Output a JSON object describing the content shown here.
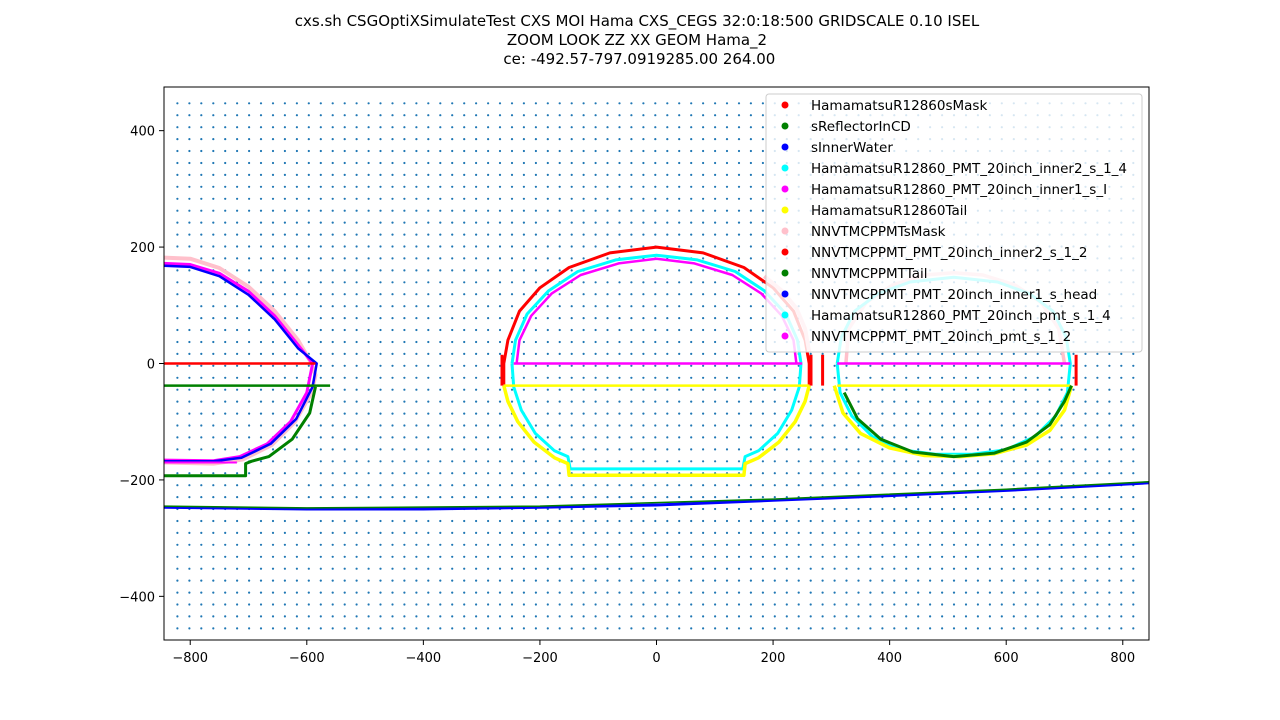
{
  "chart_data": {
    "type": "scatter",
    "title_lines": [
      "cxs.sh CSGOptiXSimulateTest CXS  MOI Hama CXS_CEGS 32:0:18:500 GRIDSCALE 0.10 ISEL",
      "ZOOM  LOOK  ZZ  XX  GEOM Hama_2",
      " ce: -492.57-797.0919285.00 264.00"
    ],
    "xlabel": "",
    "ylabel": "",
    "xlim": [
      -845,
      845
    ],
    "ylim": [
      -475,
      475
    ],
    "xticks": [
      -800,
      -600,
      -400,
      -200,
      0,
      200,
      400,
      600,
      800
    ],
    "yticks": [
      -400,
      -200,
      0,
      200,
      400
    ],
    "xtick_labels": [
      "−800",
      "−600",
      "−400",
      "−200",
      "0",
      "200",
      "400",
      "600",
      "800"
    ],
    "ytick_labels": [
      "−400",
      "−200",
      "0",
      "200",
      "400"
    ],
    "grid_points": {
      "color": "#1f77b4",
      "x_start": -822,
      "x_end": 822,
      "x_step": 20.5,
      "y_start": -455,
      "y_end": 455,
      "y_step": 20.5
    },
    "legend": {
      "placement": "upper right",
      "entries": [
        {
          "name": "HamamatsuR12860sMask",
          "color": "#ff0000"
        },
        {
          "name": "sReflectorInCD",
          "color": "#008000"
        },
        {
          "name": "sInnerWater",
          "color": "#0000ff"
        },
        {
          "name": "HamamatsuR12860_PMT_20inch_inner2_s_1_4",
          "color": "#00ffff"
        },
        {
          "name": "HamamatsuR12860_PMT_20inch_inner1_s_I",
          "color": "#ff00ff"
        },
        {
          "name": "HamamatsuR12860Tail",
          "color": "#ffff00"
        },
        {
          "name": "NNVTMCPPMTsMask",
          "color": "#ffc0cb"
        },
        {
          "name": "NNVTMCPPMT_PMT_20inch_inner2_s_1_2",
          "color": "#ff0000"
        },
        {
          "name": "NNVTMCPPMTTail",
          "color": "#008000"
        },
        {
          "name": "NNVTMCPPMT_PMT_20inch_inner1_s_head",
          "color": "#0000ff"
        },
        {
          "name": "HamamatsuR12860_PMT_20inch_pmt_s_1_4",
          "color": "#00ffff"
        },
        {
          "name": "NNVTMCPPMT_PMT_20inch_pmt_s_1_2",
          "color": "#ff00ff"
        }
      ]
    },
    "series": [
      {
        "color": "#ffc0cb",
        "width": 4,
        "points": [
          [
            -845,
            182
          ],
          [
            -800,
            180
          ],
          [
            -750,
            164
          ],
          [
            -700,
            132
          ],
          [
            -655,
            90
          ],
          [
            -615,
            40
          ],
          [
            -592,
            0
          ],
          [
            -585,
            -20
          ],
          [
            -592,
            -50
          ],
          [
            -620,
            -100
          ],
          [
            -660,
            -140
          ],
          [
            -710,
            -165
          ],
          [
            -760,
            -172
          ],
          [
            -845,
            -170
          ]
        ]
      },
      {
        "color": "#ff00ff",
        "width": 3,
        "points": [
          [
            -845,
            172
          ],
          [
            -800,
            170
          ],
          [
            -750,
            155
          ],
          [
            -700,
            124
          ],
          [
            -655,
            82
          ],
          [
            -615,
            32
          ],
          [
            -590,
            0
          ],
          [
            -600,
            -50
          ],
          [
            -628,
            -100
          ],
          [
            -668,
            -138
          ],
          [
            -715,
            -160
          ],
          [
            -760,
            -167
          ],
          [
            -845,
            -166
          ]
        ]
      },
      {
        "color": "#0000ff",
        "width": 2.5,
        "points": [
          [
            -845,
            168
          ],
          [
            -800,
            166
          ],
          [
            -750,
            150
          ],
          [
            -700,
            118
          ],
          [
            -655,
            76
          ],
          [
            -615,
            26
          ],
          [
            -583,
            0
          ],
          [
            -590,
            -40
          ],
          [
            -618,
            -95
          ],
          [
            -662,
            -138
          ],
          [
            -712,
            -162
          ],
          [
            -760,
            -168
          ],
          [
            -845,
            -168
          ]
        ]
      },
      {
        "color": "#008000",
        "width": 3,
        "points": [
          [
            -585,
            -40
          ],
          [
            -595,
            -85
          ],
          [
            -625,
            -130
          ],
          [
            -665,
            -160
          ],
          [
            -695,
            -168
          ],
          [
            -705,
            -172
          ],
          [
            -705,
            -193
          ],
          [
            -845,
            -193
          ]
        ]
      },
      {
        "color": "#008000",
        "width": 2.5,
        "points": [
          [
            -845,
            -38
          ],
          [
            -560,
            -38
          ]
        ]
      },
      {
        "color": "#ff0000",
        "width": 2.5,
        "points": [
          [
            -845,
            0
          ],
          [
            -585,
            0
          ]
        ]
      },
      {
        "color": "#ff00ff",
        "width": 2,
        "points": [
          [
            -845,
            -170
          ],
          [
            -720,
            -170
          ]
        ]
      },
      {
        "color": "#ff0000",
        "width": 3,
        "points": [
          [
            -262,
            -36
          ],
          [
            -262,
            0
          ],
          [
            -255,
            40
          ],
          [
            -235,
            90
          ],
          [
            -200,
            130
          ],
          [
            -150,
            165
          ],
          [
            -80,
            190
          ],
          [
            0,
            200
          ],
          [
            80,
            190
          ],
          [
            150,
            165
          ],
          [
            200,
            130
          ],
          [
            235,
            90
          ],
          [
            255,
            40
          ],
          [
            262,
            0
          ],
          [
            262,
            -36
          ]
        ]
      },
      {
        "color": "#ffc0cb",
        "width": 4,
        "points": [
          [
            185,
            150
          ],
          [
            215,
            125
          ],
          [
            240,
            95
          ],
          [
            255,
            60
          ],
          [
            262,
            20
          ]
        ]
      },
      {
        "color": "#00ffff",
        "width": 3,
        "points": [
          [
            -248,
            0
          ],
          [
            -245,
            -40
          ],
          [
            -232,
            -80
          ],
          [
            -208,
            -120
          ],
          [
            -175,
            -150
          ],
          [
            -152,
            -160
          ],
          [
            -148,
            -181
          ],
          [
            148,
            -181
          ],
          [
            152,
            -160
          ],
          [
            175,
            -150
          ],
          [
            208,
            -120
          ],
          [
            232,
            -80
          ],
          [
            245,
            -40
          ],
          [
            248,
            0
          ],
          [
            242,
            40
          ],
          [
            222,
            85
          ],
          [
            185,
            125
          ],
          [
            135,
            158
          ],
          [
            70,
            178
          ],
          [
            0,
            186
          ],
          [
            -70,
            178
          ],
          [
            -135,
            158
          ],
          [
            -185,
            125
          ],
          [
            -222,
            85
          ],
          [
            -242,
            40
          ],
          [
            -248,
            0
          ]
        ]
      },
      {
        "color": "#ff00ff",
        "width": 2.5,
        "points": [
          [
            -240,
            0
          ],
          [
            -235,
            40
          ],
          [
            -215,
            82
          ],
          [
            -180,
            120
          ],
          [
            -130,
            152
          ],
          [
            -65,
            172
          ],
          [
            0,
            180
          ],
          [
            65,
            172
          ],
          [
            130,
            152
          ],
          [
            180,
            120
          ],
          [
            215,
            82
          ],
          [
            235,
            40
          ],
          [
            240,
            0
          ]
        ]
      },
      {
        "color": "#ff00ff",
        "width": 2.5,
        "points": [
          [
            -245,
            0
          ],
          [
            250,
            0
          ]
        ]
      },
      {
        "color": "#ffff00",
        "width": 3.5,
        "points": [
          [
            -262,
            -38
          ],
          [
            -255,
            -65
          ],
          [
            -238,
            -100
          ],
          [
            -210,
            -135
          ],
          [
            -175,
            -162
          ],
          [
            -152,
            -172
          ],
          [
            -150,
            -192
          ],
          [
            150,
            -192
          ],
          [
            152,
            -172
          ],
          [
            175,
            -162
          ],
          [
            210,
            -135
          ],
          [
            238,
            -100
          ],
          [
            255,
            -65
          ],
          [
            262,
            -38
          ]
        ]
      },
      {
        "color": "#ffff00",
        "width": 2.5,
        "points": [
          [
            -262,
            -38
          ],
          [
            262,
            -38
          ]
        ]
      },
      {
        "color": "#ff0000",
        "width": 3,
        "points": [
          [
            -265,
            -38
          ],
          [
            -265,
            15
          ]
        ]
      },
      {
        "color": "#ff0000",
        "width": 3,
        "points": [
          [
            265,
            -38
          ],
          [
            265,
            15
          ]
        ]
      },
      {
        "color": "#ff0000",
        "width": 3,
        "points": [
          [
            285,
            -38
          ],
          [
            285,
            15
          ]
        ]
      },
      {
        "color": "#ffc0cb",
        "width": 3.5,
        "points": [
          [
            325,
            0
          ],
          [
            330,
            60
          ],
          [
            360,
            105
          ],
          [
            405,
            135
          ],
          [
            460,
            152
          ],
          [
            510,
            156
          ],
          [
            560,
            152
          ],
          [
            615,
            135
          ],
          [
            660,
            105
          ],
          [
            690,
            60
          ],
          [
            700,
            0
          ]
        ]
      },
      {
        "color": "#00ffff",
        "width": 3,
        "points": [
          [
            310,
            0
          ],
          [
            315,
            -50
          ],
          [
            335,
            -90
          ],
          [
            370,
            -125
          ],
          [
            420,
            -148
          ],
          [
            480,
            -156
          ],
          [
            540,
            -156
          ],
          [
            600,
            -148
          ],
          [
            650,
            -125
          ],
          [
            685,
            -90
          ],
          [
            705,
            -50
          ],
          [
            710,
            0
          ],
          [
            703,
            45
          ],
          [
            680,
            90
          ],
          [
            640,
            120
          ],
          [
            585,
            140
          ],
          [
            510,
            148
          ],
          [
            435,
            140
          ],
          [
            380,
            120
          ],
          [
            340,
            90
          ],
          [
            317,
            45
          ],
          [
            310,
            0
          ]
        ]
      },
      {
        "color": "#ffff00",
        "width": 3.5,
        "points": [
          [
            305,
            -38
          ],
          [
            320,
            -85
          ],
          [
            350,
            -120
          ],
          [
            400,
            -145
          ],
          [
            460,
            -158
          ],
          [
            520,
            -160
          ],
          [
            580,
            -155
          ],
          [
            635,
            -140
          ],
          [
            675,
            -115
          ],
          [
            700,
            -80
          ],
          [
            712,
            -38
          ]
        ]
      },
      {
        "color": "#ffff00",
        "width": 2.5,
        "points": [
          [
            310,
            -38
          ],
          [
            710,
            -38
          ]
        ]
      },
      {
        "color": "#ff00ff",
        "width": 2.5,
        "points": [
          [
            310,
            0
          ],
          [
            710,
            0
          ]
        ]
      },
      {
        "color": "#008000",
        "width": 3,
        "points": [
          [
            322,
            -50
          ],
          [
            345,
            -95
          ],
          [
            385,
            -130
          ],
          [
            440,
            -152
          ],
          [
            510,
            -160
          ],
          [
            580,
            -154
          ],
          [
            635,
            -135
          ],
          [
            675,
            -105
          ],
          [
            700,
            -65
          ],
          [
            712,
            -38
          ]
        ]
      },
      {
        "color": "#ff0000",
        "width": 3,
        "points": [
          [
            720,
            -38
          ],
          [
            720,
            15
          ]
        ]
      },
      {
        "color": "#0000ff",
        "width": 3,
        "points": [
          [
            -845,
            -247
          ],
          [
            -600,
            -250
          ],
          [
            -400,
            -250
          ],
          [
            -200,
            -247
          ],
          [
            0,
            -243
          ],
          [
            200,
            -235
          ],
          [
            400,
            -227
          ],
          [
            600,
            -218
          ],
          [
            845,
            -205
          ]
        ]
      },
      {
        "color": "#008000",
        "width": 1.5,
        "points": [
          [
            -845,
            -245
          ],
          [
            -600,
            -248
          ],
          [
            -200,
            -245
          ],
          [
            200,
            -233
          ],
          [
            600,
            -216
          ],
          [
            845,
            -203
          ]
        ]
      }
    ]
  }
}
